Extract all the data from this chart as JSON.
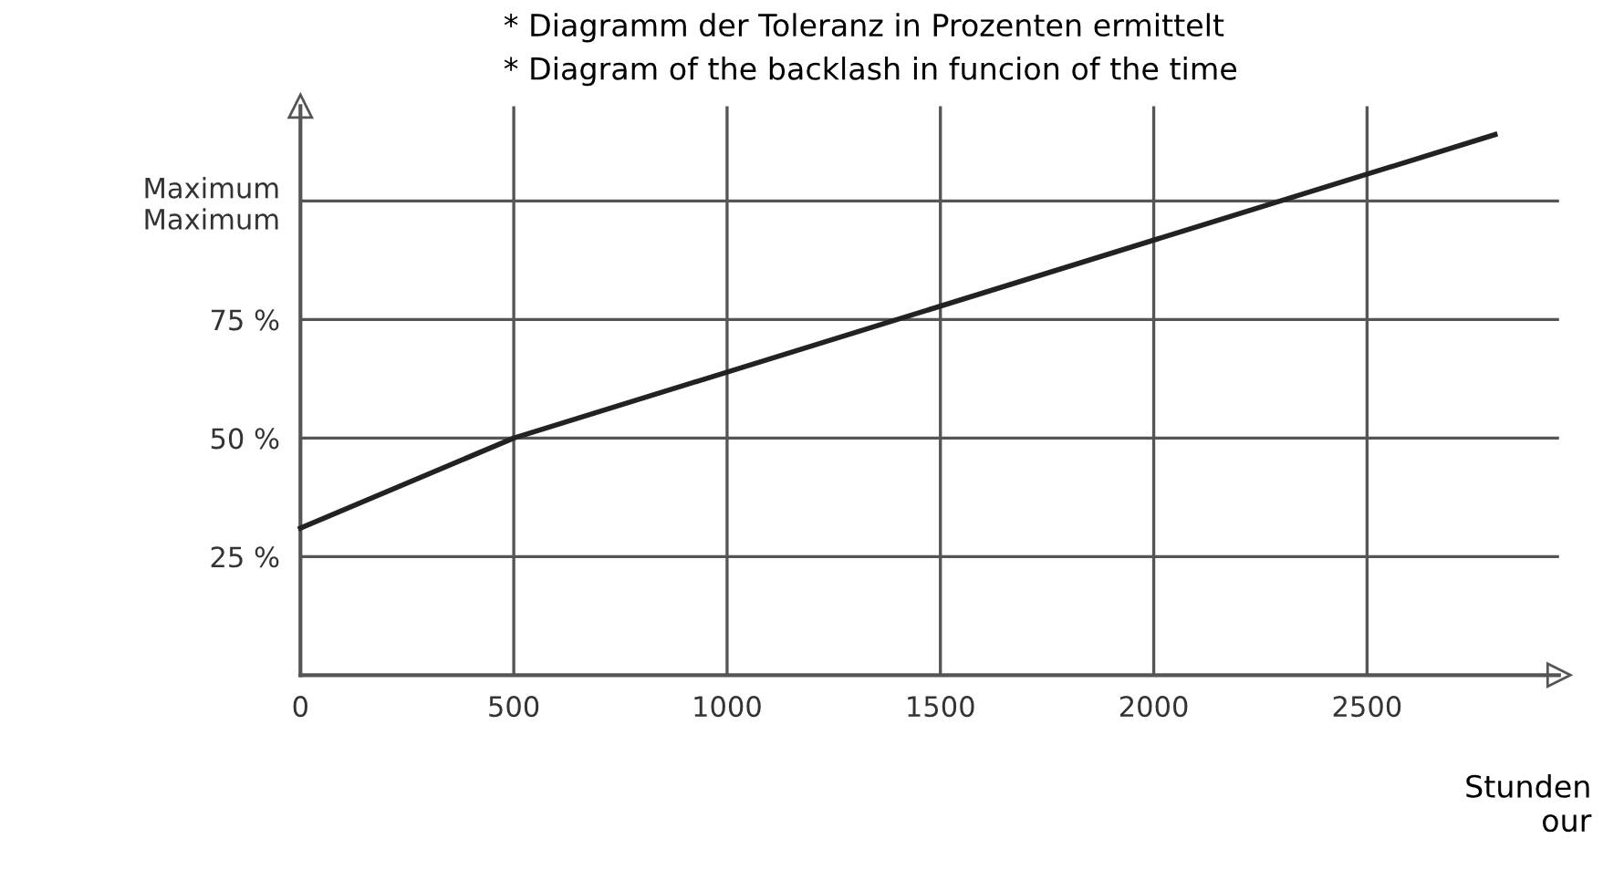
{
  "chart_data": {
    "type": "line",
    "title": "* Diagramm der Toleranz in Prozenten ermittelt",
    "subtitle": "* Diagram of the backlash in funcion of the time",
    "xlabel": "Stunden\nour",
    "x": [
      0,
      500,
      2800
    ],
    "series": [
      {
        "color": "#222222",
        "values": [
          31,
          50,
          114
        ]
      }
    ],
    "xlim": [
      0,
      2950
    ],
    "xticks": [
      0,
      500,
      1000,
      1500,
      2000,
      2500
    ],
    "ylim": [
      0,
      120
    ],
    "yticks": [
      {
        "value": 25,
        "label": "25 %"
      },
      {
        "value": 50,
        "label": "50 %"
      },
      {
        "value": 75,
        "label": "75 %"
      },
      {
        "value": 100,
        "label": "Maximum\nMaximum"
      }
    ],
    "grid": true,
    "legend": false,
    "marker": "none",
    "line_style": "solid"
  }
}
